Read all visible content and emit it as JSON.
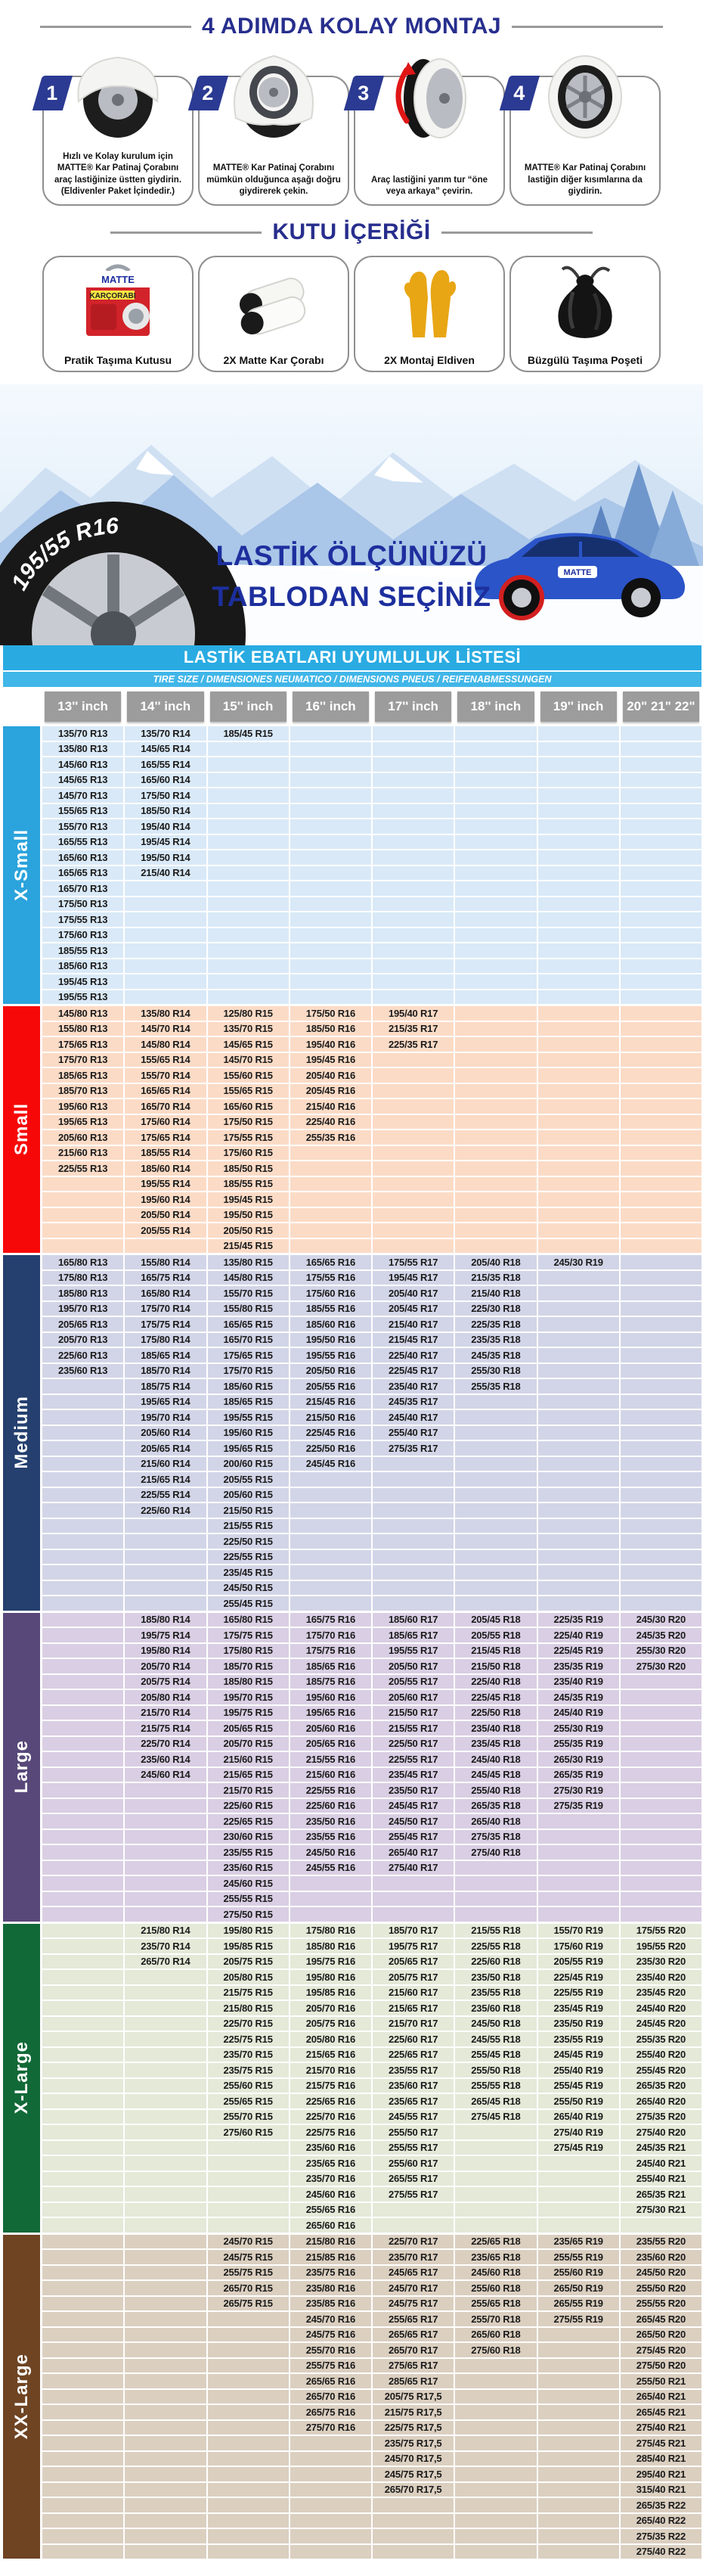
{
  "steps": {
    "title": "4 ADIMDA KOLAY MONTAJ",
    "items": [
      {
        "number": "1",
        "caption": "Hızlı ve Kolay kurulum için MATTE® Kar Patinaj Çorabını araç lastiğinize üstten giydirin. (Eldivenler Paket İçindedir.)"
      },
      {
        "number": "2",
        "caption": "MATTE® Kar Patinaj Çorabını mümkün olduğunca aşağı doğru giydirerek çekin."
      },
      {
        "number": "3",
        "caption": "Araç lastiğini yarım tur “öne veya arkaya” çevirin."
      },
      {
        "number": "4",
        "caption": "MATTE® Kar Patinaj Çorabını lastiğin diğer kısımlarına da giydirin."
      }
    ]
  },
  "box_contents": {
    "title": "KUTU İÇERİĞİ",
    "box_brand": "MATTE",
    "box_label": "KARÇORABI",
    "items": [
      {
        "icon": "carry-box-icon",
        "caption": "Pratik Taşıma Kutusu"
      },
      {
        "icon": "snow-socks-icon",
        "caption": "2X Matte Kar Çorabı"
      },
      {
        "icon": "gloves-icon",
        "caption": "2X Montaj Eldiven"
      },
      {
        "icon": "drawstring-bag-icon",
        "caption": "Büzgülü Taşıma Poşeti"
      }
    ]
  },
  "banner": {
    "headline_line1": "LASTİK ÖLÇÜNÜZÜ",
    "headline_line2": "TABLODAN SEÇİNİZ",
    "tire_label": "195/55 R16",
    "car_badge": "MATTE"
  },
  "table": {
    "title": "LASTİK EBATLARI UYUMLULUK LİSTESİ",
    "subtitle": "TIRE SIZE  /  DIMENSIONES NEUMATICO  /  DIMENSIONS PNEUS  /  REIFENABMESSUNGEN",
    "columns": [
      "13'' inch",
      "14'' inch",
      "15'' inch",
      "16'' inch",
      "17'' inch",
      "18'' inch",
      "19'' inch",
      "20\" 21\" 22\""
    ],
    "sections": [
      {
        "id": "x-small",
        "name": "X-Small",
        "label_color": "#2ba3dc",
        "row_tint": "#d9e9f7",
        "rows": 18,
        "cols": [
          [
            "135/70 R13",
            "135/80 R13",
            "145/60 R13",
            "145/65 R13",
            "145/70 R13",
            "155/65 R13",
            "155/70 R13",
            "165/55 R13",
            "165/60 R13",
            "165/65 R13",
            "165/70 R13",
            "175/50 R13",
            "175/55 R13",
            "175/60 R13",
            "185/55 R13",
            "185/60 R13",
            "195/45 R13",
            "195/55 R13"
          ],
          [
            "135/70 R14",
            "145/65 R14",
            "165/55 R14",
            "165/60 R14",
            "175/50 R14",
            "185/50 R14",
            "195/40 R14",
            "195/45 R14",
            "195/50 R14",
            "215/40 R14"
          ],
          [
            "185/45 R15"
          ],
          [],
          [],
          [],
          [],
          []
        ]
      },
      {
        "id": "small",
        "name": "Small",
        "label_color": "#f70808",
        "row_tint": "#fbdbc6",
        "rows": 16,
        "cols": [
          [
            "145/80 R13",
            "155/80 R13",
            "175/65 R13",
            "175/70 R13",
            "185/65 R13",
            "185/70 R13",
            "195/60 R13",
            "195/65 R13",
            "205/60 R13",
            "215/60 R13",
            "225/55 R13"
          ],
          [
            "135/80 R14",
            "145/70 R14",
            "145/80 R14",
            "155/65 R14",
            "155/70 R14",
            "165/65 R14",
            "165/70 R14",
            "175/60 R14",
            "175/65 R14",
            "185/55 R14",
            "185/60 R14",
            "195/55 R14",
            "195/60 R14",
            "205/50 R14",
            "205/55 R14"
          ],
          [
            "125/80 R15",
            "135/70 R15",
            "145/65 R15",
            "145/70 R15",
            "155/60 R15",
            "155/65 R15",
            "165/60 R15",
            "175/50 R15",
            "175/55 R15",
            "175/60 R15",
            "185/50 R15",
            "185/55 R15",
            "195/45 R15",
            "195/50 R15",
            "205/50 R15",
            "215/45 R15"
          ],
          [
            "175/50 R16",
            "185/50 R16",
            "195/40 R16",
            "195/45 R16",
            "205/40 R16",
            "205/45 R16",
            "215/40 R16",
            "225/40 R16",
            "255/35 R16"
          ],
          [
            "195/40 R17",
            "215/35 R17",
            "225/35 R17"
          ],
          [],
          [],
          []
        ]
      },
      {
        "id": "medium",
        "name": "Medium",
        "label_color": "#25406f",
        "row_tint": "#d2d5e7",
        "rows": 23,
        "cols": [
          [
            "165/80 R13",
            "175/80 R13",
            "185/80 R13",
            "195/70 R13",
            "205/65 R13",
            "205/70 R13",
            "225/60 R13",
            "235/60 R13"
          ],
          [
            "155/80 R14",
            "165/75 R14",
            "165/80 R14",
            "175/70 R14",
            "175/75 R14",
            "175/80 R14",
            "185/65 R14",
            "185/70 R14",
            "185/75 R14",
            "195/65 R14",
            "195/70 R14",
            "205/60 R14",
            "205/65 R14",
            "215/60 R14",
            "215/65 R14",
            "225/55 R14",
            "225/60 R14"
          ],
          [
            "135/80 R15",
            "145/80 R15",
            "155/70 R15",
            "155/80 R15",
            "165/65 R15",
            "165/70 R15",
            "175/65 R15",
            "175/70 R15",
            "185/60 R15",
            "185/65 R15",
            "195/55 R15",
            "195/60 R15",
            "195/65 R15",
            "200/60 R15",
            "205/55 R15",
            "205/60 R15",
            "215/50 R15",
            "215/55 R15",
            "225/50 R15",
            "225/55 R15",
            "235/45 R15",
            "245/50 R15",
            "255/45 R15"
          ],
          [
            "165/65 R16",
            "175/55 R16",
            "175/60 R16",
            "185/55 R16",
            "185/60 R16",
            "195/50 R16",
            "195/55 R16",
            "205/50 R16",
            "205/55 R16",
            "215/45 R16",
            "215/50 R16",
            "225/45 R16",
            "225/50 R16",
            "245/45 R16"
          ],
          [
            "175/55 R17",
            "195/45 R17",
            "205/40 R17",
            "205/45 R17",
            "215/40 R17",
            "215/45 R17",
            "225/40 R17",
            "225/45 R17",
            "235/40 R17",
            "245/35 R17",
            "245/40 R17",
            "255/40 R17",
            "275/35 R17"
          ],
          [
            "205/40 R18",
            "215/35 R18",
            "215/40 R18",
            "225/30 R18",
            "225/35 R18",
            "235/35 R18",
            "245/35 R18",
            "255/30 R18",
            "255/35 R18"
          ],
          [
            "245/30 R19"
          ],
          []
        ]
      },
      {
        "id": "large",
        "name": "Large",
        "label_color": "#574879",
        "row_tint": "#d9cee3",
        "rows": 20,
        "cols": [
          [],
          [
            "185/80 R14",
            "195/75 R14",
            "195/80 R14",
            "205/70 R14",
            "205/75 R14",
            "205/80 R14",
            "215/70 R14",
            "215/75 R14",
            "225/70 R14",
            "235/60 R14",
            "245/60 R14"
          ],
          [
            "165/80 R15",
            "175/75 R15",
            "175/80 R15",
            "185/70 R15",
            "185/80 R15",
            "195/70 R15",
            "195/75 R15",
            "205/65 R15",
            "205/70 R15",
            "215/60 R15",
            "215/65 R15",
            "215/70 R15",
            "225/60 R15",
            "225/65 R15",
            "230/60 R15",
            "235/55 R15",
            "235/60 R15",
            "245/60 R15",
            "255/55 R15",
            "275/50 R15"
          ],
          [
            "165/75 R16",
            "175/70 R16",
            "175/75 R16",
            "185/65 R16",
            "185/75 R16",
            "195/60 R16",
            "195/65 R16",
            "205/60 R16",
            "205/65 R16",
            "215/55 R16",
            "215/60 R16",
            "225/55 R16",
            "225/60 R16",
            "235/50 R16",
            "235/55 R16",
            "245/50 R16",
            "245/55 R16"
          ],
          [
            "185/60 R17",
            "185/65 R17",
            "195/55 R17",
            "205/50 R17",
            "205/55 R17",
            "205/60 R17",
            "215/50 R17",
            "215/55 R17",
            "225/50 R17",
            "225/55 R17",
            "235/45 R17",
            "235/50 R17",
            "245/45 R17",
            "245/50 R17",
            "255/45 R17",
            "265/40 R17",
            "275/40 R17"
          ],
          [
            "205/45 R18",
            "205/55 R18",
            "215/45 R18",
            "215/50 R18",
            "225/40 R18",
            "225/45 R18",
            "225/50 R18",
            "235/40 R18",
            "235/45 R18",
            "245/40 R18",
            "245/45 R18",
            "255/40 R18",
            "265/35 R18",
            "265/40 R18",
            "275/35 R18",
            "275/40 R18"
          ],
          [
            "225/35 R19",
            "225/40 R19",
            "225/45 R19",
            "235/35 R19",
            "235/40 R19",
            "245/35 R19",
            "245/40 R19",
            "255/30 R19",
            "255/35 R19",
            "265/30 R19",
            "265/35 R19",
            "275/30 R19",
            "275/35 R19"
          ],
          [
            "245/30 R20",
            "245/35 R20",
            "255/30 R20",
            "275/30 R20"
          ]
        ]
      },
      {
        "id": "x-large",
        "name": "X-Large",
        "label_color": "#116937",
        "row_tint": "#e4e9d8",
        "rows": 20,
        "cols": [
          [],
          [
            "215/80 R14",
            "235/70 R14",
            "265/70 R14"
          ],
          [
            "195/80 R15",
            "195/85 R15",
            "205/75 R15",
            "205/80 R15",
            "215/75 R15",
            "215/80 R15",
            "225/70 R15",
            "225/75 R15",
            "235/70 R15",
            "235/75 R15",
            "255/60 R15",
            "255/65 R15",
            "255/70 R15",
            "275/60 R15"
          ],
          [
            "175/80 R16",
            "185/80 R16",
            "195/75 R16",
            "195/80 R16",
            "195/85 R16",
            "205/70 R16",
            "205/75 R16",
            "205/80 R16",
            "215/65 R16",
            "215/70 R16",
            "215/75 R16",
            "225/65 R16",
            "225/70 R16",
            "225/75 R16",
            "235/60 R16",
            "235/65 R16",
            "235/70 R16",
            "245/60 R16",
            "255/65 R16",
            "265/60 R16"
          ],
          [
            "185/70 R17",
            "195/75 R17",
            "205/65 R17",
            "205/75 R17",
            "215/60 R17",
            "215/65 R17",
            "215/70 R17",
            "225/60 R17",
            "225/65 R17",
            "235/55 R17",
            "235/60 R17",
            "235/65 R17",
            "245/55 R17",
            "255/50 R17",
            "255/55 R17",
            "255/60 R17",
            "265/55 R17",
            "275/55 R17"
          ],
          [
            "215/55 R18",
            "225/55 R18",
            "225/60 R18",
            "235/50 R18",
            "235/55 R18",
            "235/60 R18",
            "245/50 R18",
            "245/55 R18",
            "255/45 R18",
            "255/50 R18",
            "255/55 R18",
            "265/45 R18",
            "275/45 R18"
          ],
          [
            "155/70 R19",
            "175/60 R19",
            "205/55 R19",
            "225/45 R19",
            "225/55 R19",
            "235/45 R19",
            "235/50 R19",
            "235/55 R19",
            "245/45 R19",
            "255/40 R19",
            "255/45 R19",
            "255/50 R19",
            "265/40 R19",
            "275/40 R19",
            "275/45 R19"
          ],
          [
            "175/55 R20",
            "195/55 R20",
            "235/30 R20",
            "235/40 R20",
            "235/45 R20",
            "245/40 R20",
            "245/45 R20",
            "255/35 R20",
            "255/40 R20",
            "255/45 R20",
            "265/35 R20",
            "265/40 R20",
            "275/35 R20",
            "275/40 R20",
            "245/35 R21",
            "245/40 R21",
            "255/40 R21",
            "265/35 R21",
            "275/30 R21"
          ]
        ]
      },
      {
        "id": "xx-large",
        "name": "XX-Large",
        "label_color": "#6e4423",
        "row_tint": "#dbcfc0",
        "rows": 21,
        "cols": [
          [],
          [],
          [
            "245/70 R15",
            "245/75 R15",
            "255/75 R15",
            "265/70 R15",
            "265/75 R15"
          ],
          [
            "215/80 R16",
            "215/85 R16",
            "235/75 R16",
            "235/80 R16",
            "235/85 R16",
            "245/70 R16",
            "245/75 R16",
            "255/70 R16",
            "255/75 R16",
            "265/65 R16",
            "265/70 R16",
            "265/75 R16",
            "275/70 R16"
          ],
          [
            "225/70 R17",
            "235/70 R17",
            "245/65 R17",
            "245/70 R17",
            "245/75 R17",
            "255/65 R17",
            "265/65 R17",
            "265/70 R17",
            "275/65 R17",
            "285/65 R17",
            "205/75 R17,5",
            "215/75 R17,5",
            "225/75 R17,5",
            "235/75 R17,5",
            "245/70 R17,5",
            "245/75 R17,5",
            "265/70 R17,5"
          ],
          [
            "225/65 R18",
            "235/65 R18",
            "245/60 R18",
            "255/60 R18",
            "255/65 R18",
            "255/70 R18",
            "265/60 R18",
            "275/60 R18"
          ],
          [
            "235/65 R19",
            "255/55 R19",
            "255/60 R19",
            "265/50 R19",
            "265/55 R19",
            "275/55 R19"
          ],
          [
            "235/55 R20",
            "235/60 R20",
            "245/50 R20",
            "255/50 R20",
            "255/55 R20",
            "265/45 R20",
            "265/50 R20",
            "275/45 R20",
            "275/50 R20",
            "255/50 R21",
            "265/40 R21",
            "265/45 R21",
            "275/40 R21",
            "275/45 R21",
            "285/40 R21",
            "295/40 R21",
            "315/40 R21",
            "265/35 R22",
            "265/40 R22",
            "275/35 R22",
            "275/40 R22"
          ]
        ]
      }
    ]
  }
}
